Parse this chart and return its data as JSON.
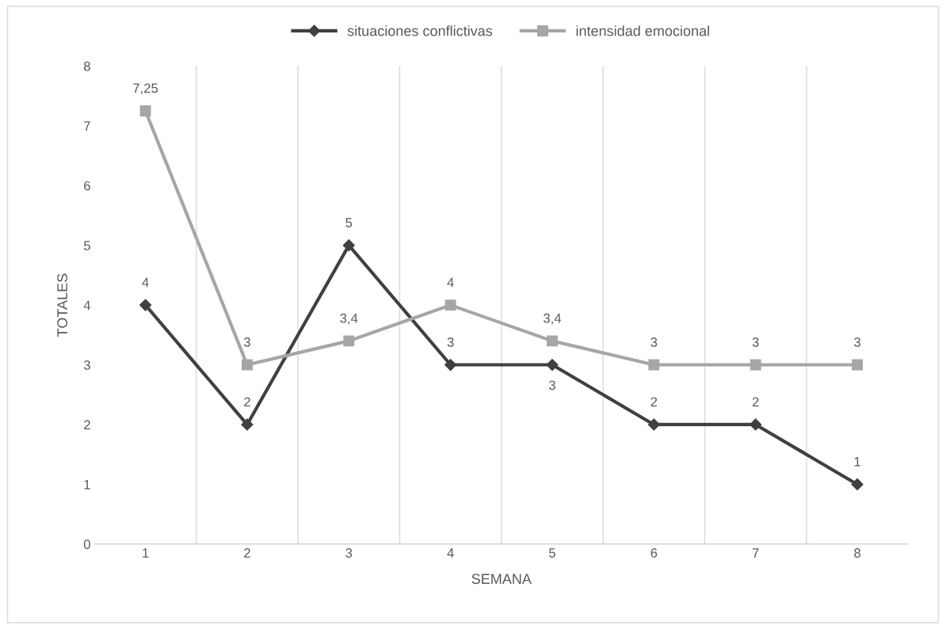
{
  "chart_data": {
    "type": "line",
    "xlabel": "SEMANA",
    "ylabel": "TOTALES",
    "categories": [
      "1",
      "2",
      "3",
      "4",
      "5",
      "6",
      "7",
      "8"
    ],
    "series": [
      {
        "name": "situaciones conflictivas",
        "color": "#404040",
        "marker": "diamond",
        "values": [
          4,
          2,
          5,
          3,
          3,
          2,
          2,
          1
        ],
        "value_labels": [
          "4",
          "2",
          "5",
          "3",
          "3",
          "2",
          "2",
          "1"
        ]
      },
      {
        "name": "intensidad emocional",
        "color": "#a6a6a6",
        "marker": "square",
        "values": [
          7.25,
          3,
          3.4,
          4,
          3.4,
          3,
          3,
          3
        ],
        "value_labels": [
          "7,25",
          "3",
          "3,4",
          "4",
          "3,4",
          "3",
          "3",
          "3"
        ]
      }
    ],
    "ylim": [
      0,
      8
    ],
    "yticks": [
      0,
      1,
      2,
      3,
      4,
      5,
      6,
      7,
      8
    ],
    "grid": "x",
    "legend": "top",
    "line_style": "solid"
  }
}
